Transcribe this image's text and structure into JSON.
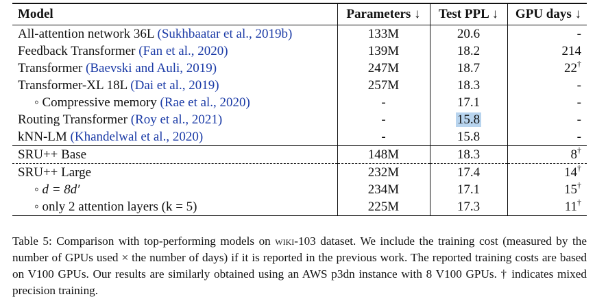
{
  "headers": {
    "model": "Model",
    "params": "Parameters ↓",
    "ppl": "Test PPL ↓",
    "gpu": "GPU days ↓"
  },
  "rows": [
    {
      "name": "All-attention network 36L",
      "cite": "(Sukhbaatar et al., 2019b)",
      "params": "133M",
      "ppl": "20.6",
      "gpu": "-",
      "dagger": ""
    },
    {
      "name": "Feedback Transformer",
      "cite": "(Fan et al., 2020)",
      "params": "139M",
      "ppl": "18.2",
      "gpu": "214",
      "dagger": ""
    },
    {
      "name": "Transformer",
      "cite": "(Baevski and Auli, 2019)",
      "params": "247M",
      "ppl": "18.7",
      "gpu": "22",
      "dagger": "†"
    },
    {
      "name": "Transformer-XL 18L",
      "cite": "(Dai et al., 2019)",
      "params": "257M",
      "ppl": "18.3",
      "gpu": "-",
      "dagger": ""
    },
    {
      "name": "◦  Compressive memory",
      "cite": "(Rae et al., 2020)",
      "params": "-",
      "ppl": "17.1",
      "gpu": "-",
      "dagger": ""
    },
    {
      "name": "Routing Transformer",
      "cite": "(Roy et al., 2021)",
      "params": "-",
      "ppl": "15.8",
      "gpu": "-",
      "dagger": ""
    },
    {
      "name": "kNN-LM",
      "cite": "(Khandelwal et al., 2020)",
      "params": "-",
      "ppl": "15.8",
      "gpu": "-",
      "dagger": ""
    },
    {
      "name": "SRU++ Base",
      "cite": "",
      "params": "148M",
      "ppl": "18.3",
      "gpu": "8",
      "dagger": "†"
    },
    {
      "name": "SRU++ Large",
      "cite": "",
      "params": "232M",
      "ppl": "17.4",
      "gpu": "14",
      "dagger": "†"
    },
    {
      "name": "◦  d = 8d′",
      "cite": "",
      "params": "234M",
      "ppl": "17.1",
      "gpu": "15",
      "dagger": "†"
    },
    {
      "name": "◦  only 2 attention layers (k = 5)",
      "cite": "",
      "params": "225M",
      "ppl": "17.3",
      "gpu": "11",
      "dagger": "†"
    }
  ],
  "caption": {
    "lead": "Table 5: Comparison with top-performing models on ",
    "dataset": "wiki",
    "dataset_suffix": "-103 dataset. We include the training cost (measured by the number of GPUs used × the number of days) if it is reported in the previous work. The reported training costs are based on V100 GPUs. Our results are similarly obtained using an AWS p3dn instance with 8 V100 GPUs. † indicates mixed precision training."
  }
}
